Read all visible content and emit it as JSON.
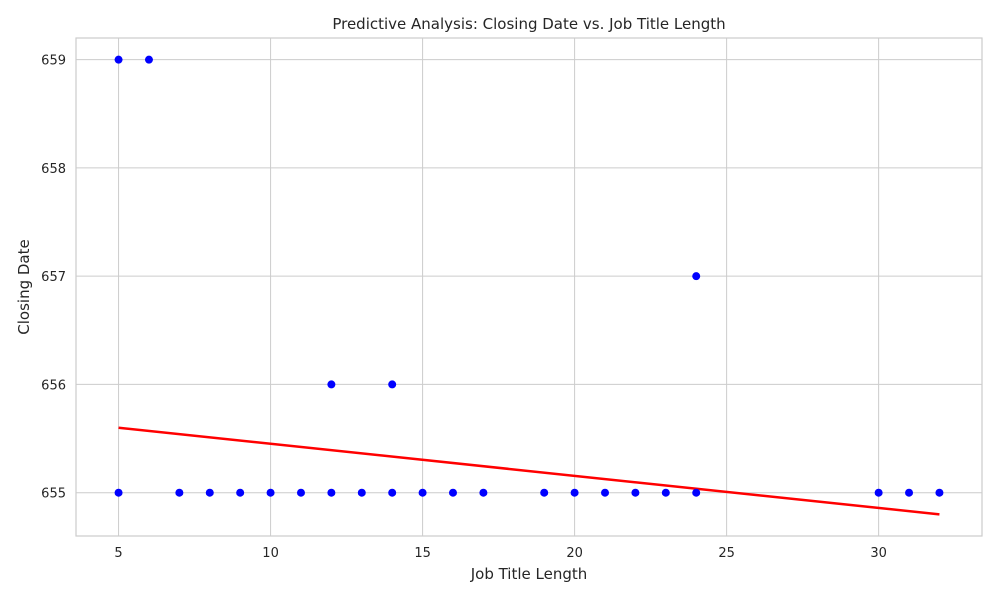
{
  "chart_data": {
    "type": "scatter",
    "title": "Predictive Analysis: Closing Date vs. Job Title Length",
    "xlabel": "Job Title Length",
    "ylabel": "Closing Date",
    "xlim": [
      3.6,
      33.4
    ],
    "ylim": [
      654.6,
      659.2
    ],
    "xticks": [
      5,
      10,
      15,
      20,
      25,
      30
    ],
    "yticks": [
      655,
      656,
      657,
      658,
      659
    ],
    "grid": true,
    "point_color": "#0000ff",
    "line_color": "#ff0000",
    "points": [
      {
        "x": 5,
        "y": 659
      },
      {
        "x": 6,
        "y": 659
      },
      {
        "x": 5,
        "y": 655
      },
      {
        "x": 7,
        "y": 655
      },
      {
        "x": 8,
        "y": 655
      },
      {
        "x": 9,
        "y": 655
      },
      {
        "x": 10,
        "y": 655
      },
      {
        "x": 11,
        "y": 655
      },
      {
        "x": 12,
        "y": 655
      },
      {
        "x": 12,
        "y": 656
      },
      {
        "x": 13,
        "y": 655
      },
      {
        "x": 14,
        "y": 655
      },
      {
        "x": 14,
        "y": 656
      },
      {
        "x": 15,
        "y": 655
      },
      {
        "x": 16,
        "y": 655
      },
      {
        "x": 17,
        "y": 655
      },
      {
        "x": 19,
        "y": 655
      },
      {
        "x": 20,
        "y": 655
      },
      {
        "x": 21,
        "y": 655
      },
      {
        "x": 22,
        "y": 655
      },
      {
        "x": 23,
        "y": 655
      },
      {
        "x": 24,
        "y": 655
      },
      {
        "x": 24,
        "y": 657
      },
      {
        "x": 30,
        "y": 655
      },
      {
        "x": 31,
        "y": 655
      },
      {
        "x": 32,
        "y": 655
      }
    ],
    "trend_line": {
      "x": [
        5,
        32
      ],
      "y": [
        655.6,
        654.8
      ]
    }
  }
}
